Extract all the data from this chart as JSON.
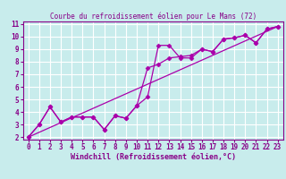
{
  "title": "Courbe du refroidissement éolien pour Le Mans (72)",
  "xlabel": "Windchill (Refroidissement éolien,°C)",
  "bg_color": "#c8ecec",
  "grid_color": "#ffffff",
  "line_color": "#aa00aa",
  "marker": "D",
  "xlim": [
    -0.5,
    23.5
  ],
  "ylim": [
    1.8,
    11.2
  ],
  "xticks": [
    0,
    1,
    2,
    3,
    4,
    5,
    6,
    7,
    8,
    9,
    10,
    11,
    12,
    13,
    14,
    15,
    16,
    17,
    18,
    19,
    20,
    21,
    22,
    23
  ],
  "yticks": [
    2,
    3,
    4,
    5,
    6,
    7,
    8,
    9,
    10,
    11
  ],
  "line1_x": [
    0,
    1,
    2,
    3,
    4,
    5,
    6,
    7,
    8,
    9,
    10,
    11,
    12,
    13,
    14,
    15,
    16,
    17,
    18,
    19,
    20,
    21,
    22,
    23
  ],
  "line1_y": [
    2.0,
    3.0,
    4.4,
    3.2,
    3.6,
    3.6,
    3.6,
    2.6,
    3.7,
    3.5,
    4.5,
    5.2,
    9.3,
    9.3,
    8.3,
    8.3,
    9.0,
    8.8,
    9.8,
    9.9,
    10.1,
    9.5,
    10.6,
    10.8
  ],
  "line2_x": [
    0,
    1,
    2,
    3,
    4,
    5,
    6,
    7,
    8,
    9,
    10,
    11,
    12,
    13,
    14,
    15,
    16,
    17,
    18,
    19,
    20,
    21,
    22,
    23
  ],
  "line2_y": [
    2.0,
    3.0,
    4.4,
    3.2,
    3.6,
    3.6,
    3.6,
    2.6,
    3.7,
    3.5,
    4.5,
    7.5,
    7.8,
    8.3,
    8.4,
    8.5,
    9.0,
    8.8,
    9.8,
    9.9,
    10.1,
    9.5,
    10.6,
    10.8
  ],
  "line3_x": [
    0,
    23
  ],
  "line3_y": [
    2.0,
    10.8
  ],
  "label_color": "#880088",
  "tick_fontsize": 5.5,
  "xlabel_fontsize": 6.0,
  "title_fontsize": 5.5
}
